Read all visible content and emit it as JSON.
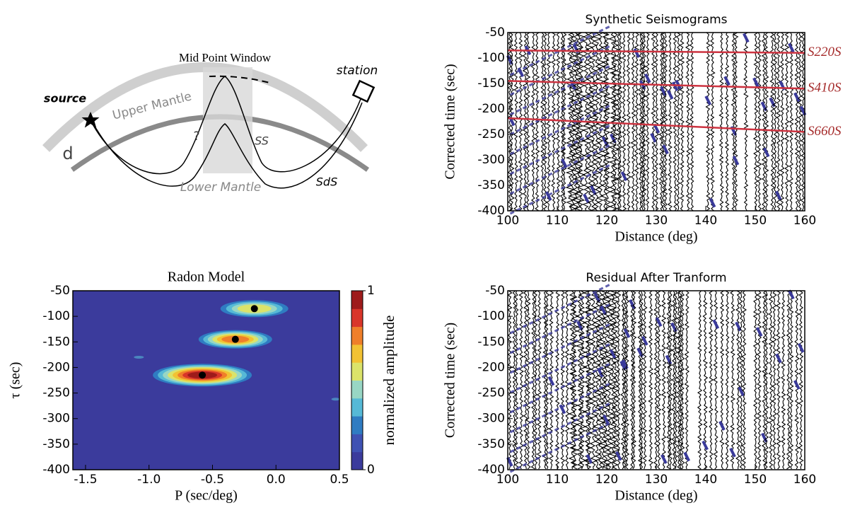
{
  "diagram": {
    "title": "Mid Point Window",
    "labels": [
      "station",
      "source",
      "Upper Mantle",
      "?",
      "SS",
      "d",
      "Lower Mantle",
      "SdS"
    ]
  },
  "chart_data": [
    {
      "type": "wiggle",
      "title": "Synthetic Seismograms",
      "xlabel": "Distance (deg)",
      "ylabel": "Corrected time (sec)",
      "xlim": [
        100,
        160
      ],
      "xticks": [
        100,
        110,
        120,
        130,
        140,
        150,
        160
      ],
      "ylim": [
        -400,
        -50
      ],
      "yticks": [
        -50,
        -100,
        -150,
        -200,
        -250,
        -300,
        -350,
        -400
      ],
      "series": [
        {
          "name": "S220S",
          "color": "#cc3340",
          "x": [
            100,
            160
          ],
          "values": [
            -85,
            -90
          ]
        },
        {
          "name": "S410S",
          "color": "#cc3340",
          "x": [
            100,
            160
          ],
          "values": [
            -145,
            -160
          ]
        },
        {
          "name": "S660S",
          "color": "#cc3340",
          "x": [
            100,
            160
          ],
          "values": [
            -218,
            -245
          ]
        }
      ]
    },
    {
      "type": "heatmap",
      "title": "Radon Model",
      "xlabel": "P (sec/deg)",
      "ylabel": "τ (sec)",
      "xlim": [
        -1.6,
        0.5
      ],
      "xticks": [
        -1.5,
        {
          "value": -1,
          "label": "-1.0"
        },
        -0.5,
        {
          "value": 0,
          "label": "0.0"
        },
        0.5
      ],
      "ylim": [
        -400,
        -50
      ],
      "yticks": [
        -50,
        -100,
        -150,
        -200,
        -250,
        -300,
        -350,
        -400
      ],
      "series": [
        {
          "color": "#000000",
          "x": [
            -0.17,
            -0.32,
            -0.58
          ],
          "values": [
            -85,
            -145,
            -215
          ]
        }
      ],
      "colorbar": {
        "label": "normalized amplitude",
        "ticks": [
          0,
          1
        ],
        "colors": [
          "#3b3b9c",
          "#3f52b3",
          "#2f7cc2",
          "#56b9d6",
          "#98d6c4",
          "#dbe36a",
          "#f2c233",
          "#ef7f2a",
          "#d9362a",
          "#9e1b1b"
        ]
      }
    },
    {
      "type": "wiggle",
      "title": "Residual After Tranform",
      "xlabel": "Distance (deg)",
      "ylabel": "Corrected time (sec)",
      "xlim": [
        100,
        160
      ],
      "xticks": [
        100,
        110,
        120,
        130,
        140,
        150,
        160
      ],
      "ylim": [
        -400,
        -50
      ],
      "yticks": [
        -50,
        -100,
        -150,
        -200,
        -250,
        -300,
        -350,
        -400
      ],
      "series": []
    }
  ]
}
